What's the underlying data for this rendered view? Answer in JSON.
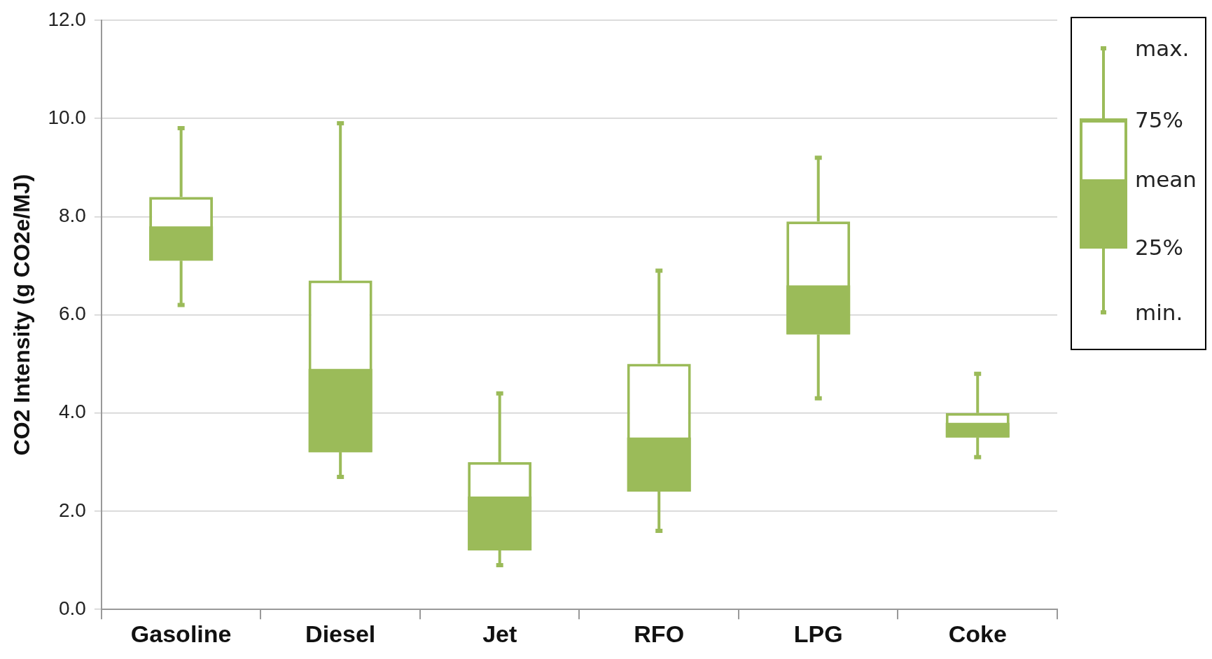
{
  "chart_data": {
    "type": "box",
    "ylabel": "CO2 Intensity (g CO2e/MJ)",
    "categories": [
      "Gasoline",
      "Diesel",
      "Jet",
      "RFO",
      "LPG",
      "Coke"
    ],
    "color": "#9bbb59",
    "boxes": [
      {
        "low": 6.2,
        "q1": 7.1,
        "mean": 7.8,
        "q3": 8.4,
        "high": 9.8
      },
      {
        "low": 2.7,
        "q1": 3.2,
        "mean": 4.9,
        "q3": 6.7,
        "high": 9.9
      },
      {
        "low": 0.9,
        "q1": 1.2,
        "mean": 2.3,
        "q3": 3.0,
        "high": 4.4
      },
      {
        "low": 1.6,
        "q1": 2.4,
        "mean": 3.5,
        "q3": 5.0,
        "high": 6.9
      },
      {
        "low": 4.3,
        "q1": 5.6,
        "mean": 6.6,
        "q3": 7.9,
        "high": 9.2
      },
      {
        "low": 3.1,
        "q1": 3.5,
        "mean": 3.8,
        "q3": 4.0,
        "high": 4.8
      }
    ],
    "ylim": [
      0,
      12
    ],
    "yticks": [
      {
        "value": 0,
        "label": "0.0"
      },
      {
        "value": 2,
        "label": "2.0"
      },
      {
        "value": 4,
        "label": "4.0"
      },
      {
        "value": 6,
        "label": "6.0"
      },
      {
        "value": 8,
        "label": "8.0"
      },
      {
        "value": 10,
        "label": "10.0"
      },
      {
        "value": 12,
        "label": "12.0"
      }
    ],
    "grid": "y",
    "legend": false,
    "annotations": [
      "max.",
      "75%",
      "mean",
      "25%",
      "min."
    ]
  }
}
